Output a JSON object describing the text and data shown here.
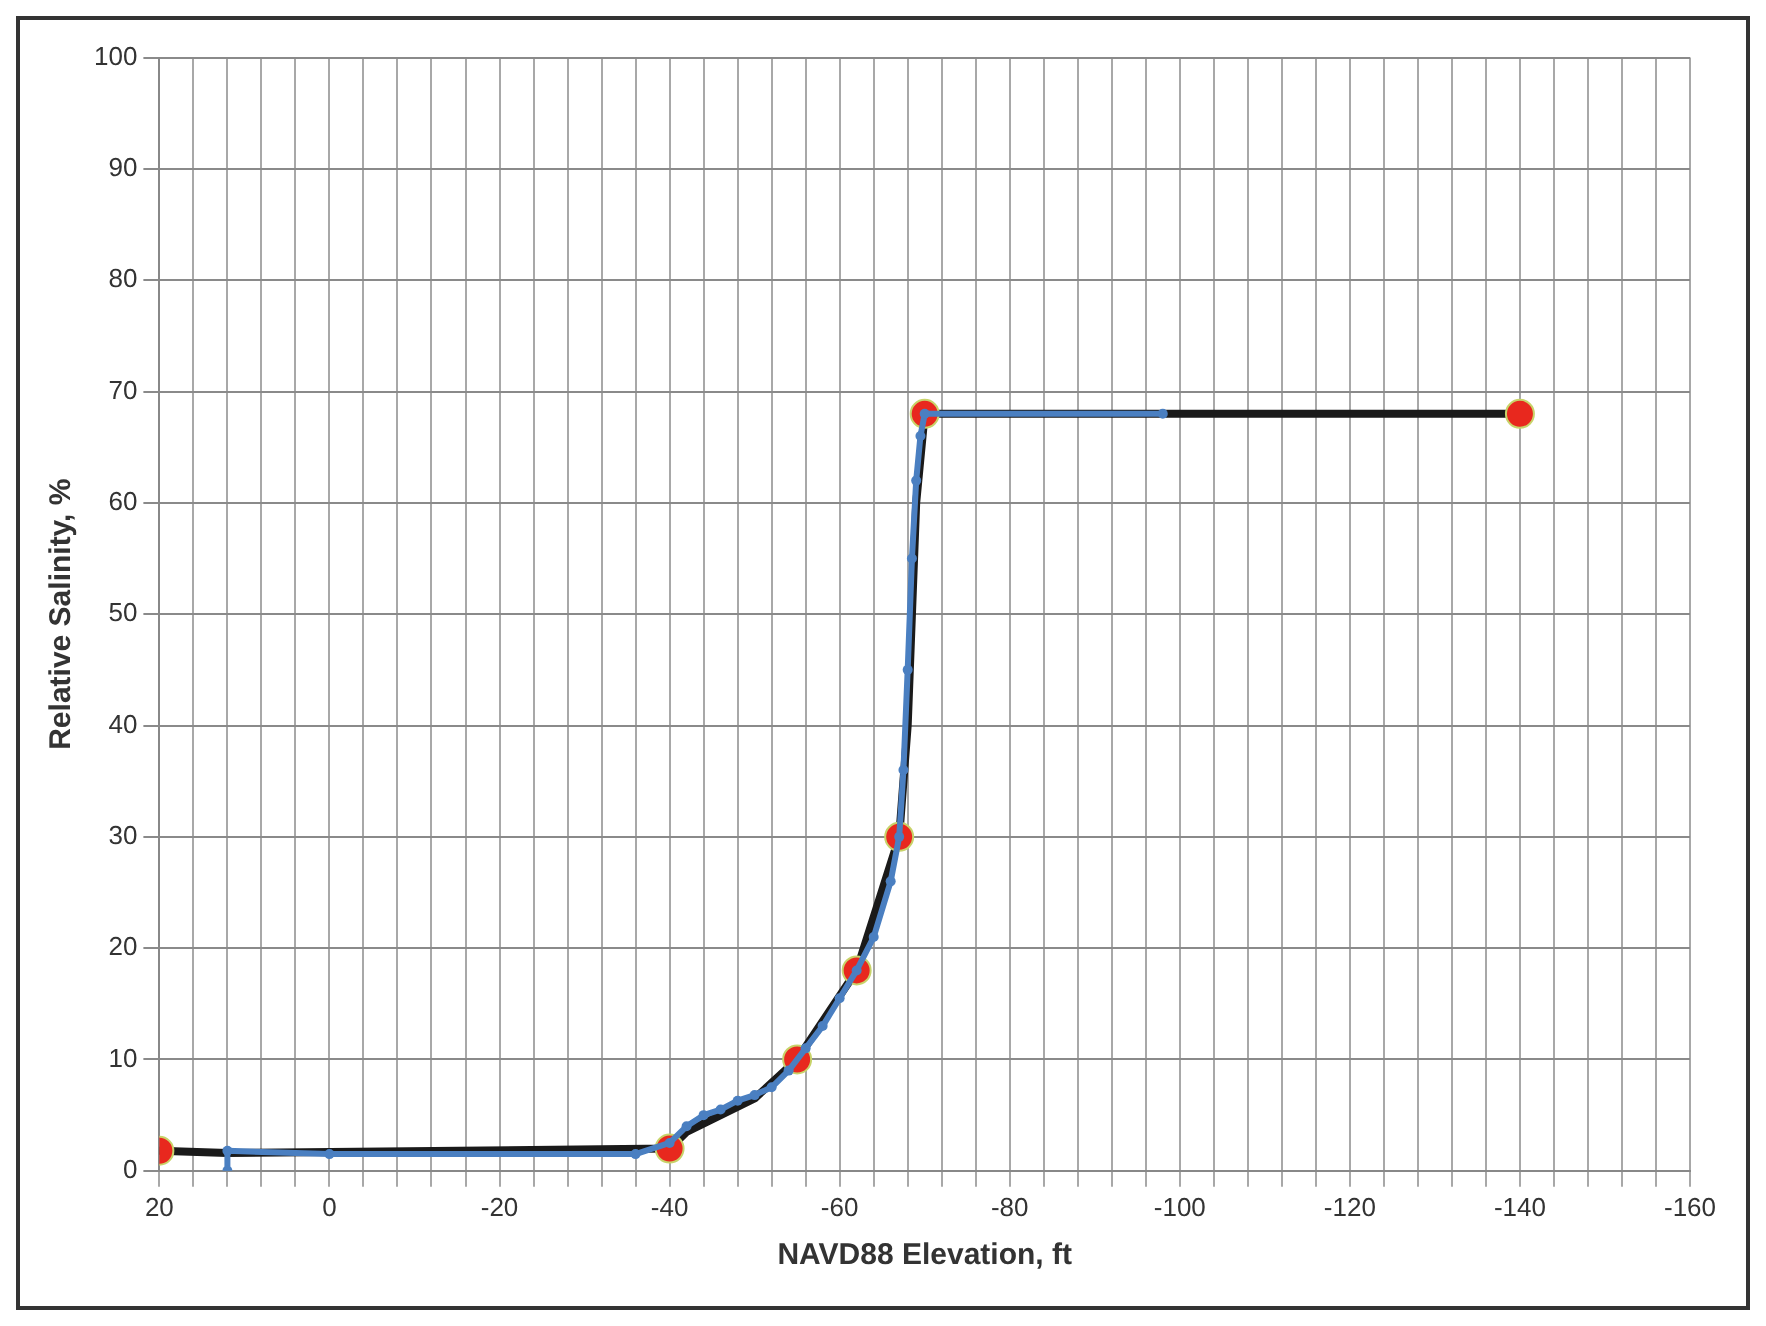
{
  "chart_data": {
    "type": "line",
    "xlabel": "NAVD88 Elevation, ft",
    "ylabel": "Relative Salinity, %",
    "xlim": [
      20,
      -160
    ],
    "ylim": [
      0,
      100
    ],
    "xticks": [
      20,
      {
        "value": 16,
        "label": null
      },
      {
        "value": 12,
        "label": null
      },
      {
        "value": 8,
        "label": null
      },
      {
        "value": 4,
        "label": null
      },
      0,
      {
        "value": -4,
        "label": null
      },
      {
        "value": -8,
        "label": null
      },
      {
        "value": -12,
        "label": null
      },
      {
        "value": -16,
        "label": null
      },
      -20,
      {
        "value": -24,
        "label": null
      },
      {
        "value": -28,
        "label": null
      },
      {
        "value": -32,
        "label": null
      },
      {
        "value": -36,
        "label": null
      },
      -40,
      {
        "value": -44,
        "label": null
      },
      {
        "value": -48,
        "label": null
      },
      {
        "value": -52,
        "label": null
      },
      {
        "value": -56,
        "label": null
      },
      -60,
      {
        "value": -64,
        "label": null
      },
      {
        "value": -68,
        "label": null
      },
      {
        "value": -72,
        "label": null
      },
      {
        "value": -76,
        "label": null
      },
      -80,
      {
        "value": -84,
        "label": null
      },
      {
        "value": -88,
        "label": null
      },
      {
        "value": -92,
        "label": null
      },
      {
        "value": -96,
        "label": null
      },
      -100,
      {
        "value": -104,
        "label": null
      },
      {
        "value": -108,
        "label": null
      },
      {
        "value": -112,
        "label": null
      },
      {
        "value": -116,
        "label": null
      },
      -120,
      {
        "value": -124,
        "label": null
      },
      {
        "value": -128,
        "label": null
      },
      {
        "value": -132,
        "label": null
      },
      {
        "value": -136,
        "label": null
      },
      -140,
      {
        "value": -144,
        "label": null
      },
      {
        "value": -148,
        "label": null
      },
      {
        "value": -152,
        "label": null
      },
      {
        "value": -156,
        "label": null
      },
      -160
    ],
    "yticks": [
      0,
      10,
      20,
      30,
      40,
      50,
      60,
      70,
      80,
      90,
      100
    ],
    "grid": true,
    "legend": false,
    "series": [
      {
        "color": "#1a1a1a",
        "marker": "none",
        "x": [
          20,
          12,
          -40,
          -42,
          -46,
          -50,
          -55,
          -62,
          -67,
          -68,
          -69,
          -70,
          -140
        ],
        "values": [
          1.8,
          1.6,
          2,
          3.5,
          5,
          6.5,
          10,
          18,
          30,
          40,
          60,
          68,
          68
        ]
      },
      {
        "type": "scatter",
        "color": "#e8281e",
        "marker": "circle",
        "x": [
          20,
          -40,
          -55,
          -62,
          -67,
          -70,
          -140
        ],
        "values": [
          1.8,
          2,
          10,
          18,
          30,
          68,
          68
        ]
      },
      {
        "color": "#4a7fc1",
        "marker": "circle",
        "x": [
          12,
          12,
          0,
          -36,
          -40,
          -42,
          -44,
          -46,
          -48,
          -50,
          -52,
          -54,
          -56,
          -58,
          -60,
          -62,
          -64,
          -66,
          -67,
          -67.5,
          -68,
          -68.5,
          -69,
          -69.5,
          -70,
          -98
        ],
        "values": [
          0,
          1.8,
          1.5,
          1.5,
          2.5,
          4,
          5,
          5.5,
          6.3,
          6.8,
          7.5,
          9,
          11,
          13,
          15.5,
          18,
          21,
          26,
          30,
          36,
          45,
          55,
          62,
          66,
          68,
          68
        ]
      }
    ]
  }
}
